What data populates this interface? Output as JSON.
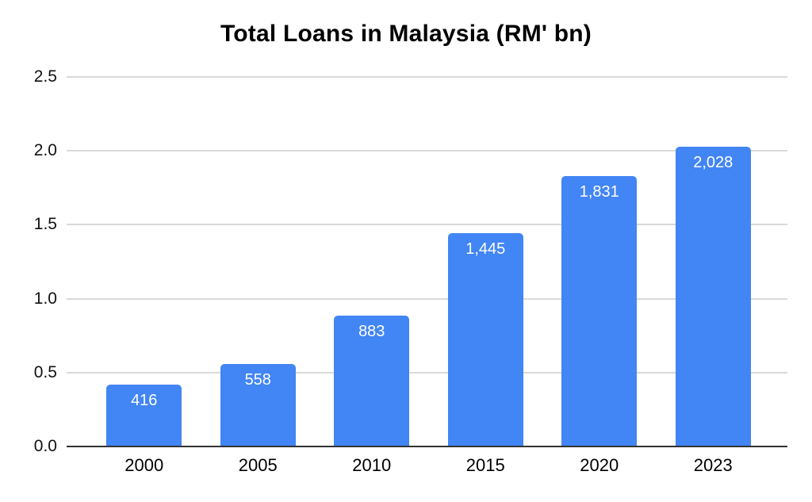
{
  "chart_data": {
    "type": "bar",
    "title": "Total Loans in Malaysia (RM' bn)",
    "categories": [
      "2000",
      "2005",
      "2010",
      "2015",
      "2020",
      "2023"
    ],
    "values": [
      416,
      558,
      883,
      1445,
      1831,
      2028
    ],
    "bar_labels": [
      "416",
      "558",
      "883",
      "1,445",
      "1,831",
      "2,028"
    ],
    "xlabel": "",
    "ylabel": "",
    "ylim": [
      0,
      2.5
    ],
    "yticks": [
      "0.0",
      "0.5",
      "1.0",
      "1.5",
      "2.0",
      "2.5"
    ],
    "y_axis_unit_divisor": 1000,
    "grid": true,
    "legend": false,
    "colors": {
      "bar": "#4285F4",
      "grid": "#d9d9d9",
      "axis": "#333333",
      "bar_label": "#ffffff",
      "tick_text": "#111111",
      "title_text": "#000000"
    }
  }
}
